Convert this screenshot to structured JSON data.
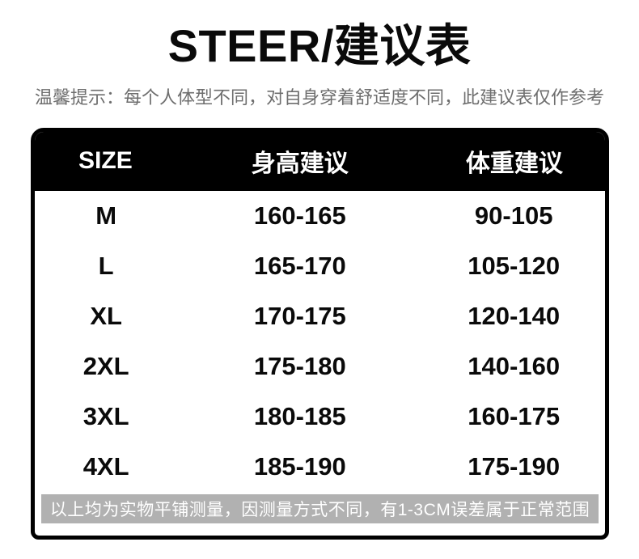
{
  "page": {
    "title": "STEER/建议表",
    "subtitle": "温馨提示：每个人体型不同，对自身穿着舒适度不同，此建议表仅作参考"
  },
  "size_table": {
    "columns": [
      "SIZE",
      "身高建议",
      "体重建议"
    ],
    "rows": [
      {
        "size": "M",
        "height": "160-165",
        "weight": "90-105"
      },
      {
        "size": "L",
        "height": "165-170",
        "weight": "105-120"
      },
      {
        "size": "XL",
        "height": "170-175",
        "weight": "120-140"
      },
      {
        "size": "2XL",
        "height": "175-180",
        "weight": "140-160"
      },
      {
        "size": "3XL",
        "height": "180-185",
        "weight": "160-175"
      },
      {
        "size": "4XL",
        "height": "185-190",
        "weight": "175-190"
      }
    ],
    "footnote": "以上均为实物平铺测量，因测量方式不同，有1-3CM误差属于正常范围"
  },
  "colors": {
    "header_bg": "#000000",
    "table_border": "#000000",
    "body_text": "#0a0a0a",
    "subtitle_text": "#6e6e6e",
    "footnote_bg": "#b1b1b1",
    "footnote_text": "#ffffff",
    "page_bg": "#ffffff"
  }
}
